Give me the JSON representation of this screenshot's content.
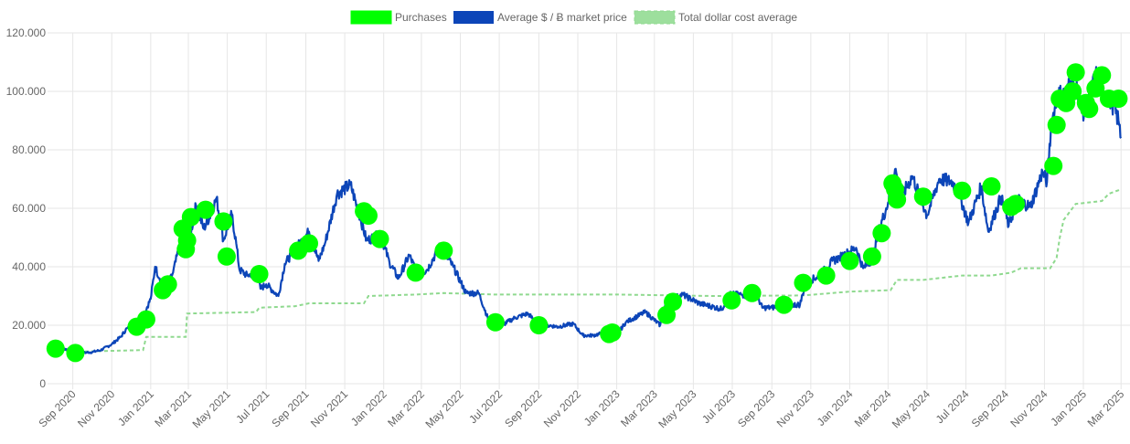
{
  "chart_data": {
    "type": "line",
    "title": "",
    "xlabel": "",
    "ylabel": "",
    "ylim": [
      0,
      120000
    ],
    "xlim": [
      "2020-08-01",
      "2025-03-15"
    ],
    "grid": true,
    "legend_position": "top-center",
    "y_ticks": [
      {
        "value": 0,
        "label": "0"
      },
      {
        "value": 20000,
        "label": "20.000"
      },
      {
        "value": 40000,
        "label": "40.000"
      },
      {
        "value": 60000,
        "label": "60.000"
      },
      {
        "value": 80000,
        "label": "80.000"
      },
      {
        "value": 100000,
        "label": "100.000"
      },
      {
        "value": 120000,
        "label": "120.000"
      }
    ],
    "x_ticks": [
      {
        "date": "2020-09-01",
        "label": "Sep 2020"
      },
      {
        "date": "2020-11-01",
        "label": "Nov 2020"
      },
      {
        "date": "2021-01-01",
        "label": "Jan 2021"
      },
      {
        "date": "2021-03-01",
        "label": "Mar 2021"
      },
      {
        "date": "2021-05-01",
        "label": "May 2021"
      },
      {
        "date": "2021-07-01",
        "label": "Jul 2021"
      },
      {
        "date": "2021-09-01",
        "label": "Sep 2021"
      },
      {
        "date": "2021-11-01",
        "label": "Nov 2021"
      },
      {
        "date": "2022-01-01",
        "label": "Jan 2022"
      },
      {
        "date": "2022-03-01",
        "label": "Mar 2022"
      },
      {
        "date": "2022-05-01",
        "label": "May 2022"
      },
      {
        "date": "2022-07-01",
        "label": "Jul 2022"
      },
      {
        "date": "2022-09-01",
        "label": "Sep 2022"
      },
      {
        "date": "2022-11-01",
        "label": "Nov 2022"
      },
      {
        "date": "2023-01-01",
        "label": "Jan 2023"
      },
      {
        "date": "2023-03-01",
        "label": "Mar 2023"
      },
      {
        "date": "2023-05-01",
        "label": "May 2023"
      },
      {
        "date": "2023-07-01",
        "label": "Jul 2023"
      },
      {
        "date": "2023-09-01",
        "label": "Sep 2023"
      },
      {
        "date": "2023-11-01",
        "label": "Nov 2023"
      },
      {
        "date": "2024-01-01",
        "label": "Jan 2024"
      },
      {
        "date": "2024-03-01",
        "label": "Mar 2024"
      },
      {
        "date": "2024-05-01",
        "label": "May 2024"
      },
      {
        "date": "2024-07-01",
        "label": "Jul 2024"
      },
      {
        "date": "2024-09-01",
        "label": "Sep 2024"
      },
      {
        "date": "2024-11-01",
        "label": "Nov 2024"
      },
      {
        "date": "2025-01-01",
        "label": "Jan 2025"
      },
      {
        "date": "2025-03-01",
        "label": "Mar 2025"
      }
    ],
    "series": [
      {
        "name": "Purchases",
        "style": "points",
        "color": "#00ff00",
        "points": [
          [
            "2020-08-05",
            12000
          ],
          [
            "2020-09-05",
            10500
          ],
          [
            "2020-12-10",
            19500
          ],
          [
            "2020-12-25",
            22000
          ],
          [
            "2021-01-20",
            32000
          ],
          [
            "2021-01-28",
            34000
          ],
          [
            "2021-02-20",
            53000
          ],
          [
            "2021-02-25",
            46000
          ],
          [
            "2021-02-27",
            49000
          ],
          [
            "2021-03-05",
            57000
          ],
          [
            "2021-03-28",
            59500
          ],
          [
            "2021-04-25",
            55500
          ],
          [
            "2021-04-30",
            43500
          ],
          [
            "2021-06-20",
            37500
          ],
          [
            "2021-08-20",
            45500
          ],
          [
            "2021-09-06",
            48000
          ],
          [
            "2021-12-01",
            59000
          ],
          [
            "2021-12-08",
            57500
          ],
          [
            "2021-12-26",
            49500
          ],
          [
            "2022-02-20",
            38000
          ],
          [
            "2022-04-05",
            45500
          ],
          [
            "2022-06-25",
            21000
          ],
          [
            "2022-09-01",
            20000
          ],
          [
            "2022-12-20",
            17000
          ],
          [
            "2022-12-25",
            17500
          ],
          [
            "2023-03-20",
            23500
          ],
          [
            "2023-03-30",
            28000
          ],
          [
            "2023-06-30",
            28500
          ],
          [
            "2023-08-01",
            31000
          ],
          [
            "2023-09-20",
            27000
          ],
          [
            "2023-10-20",
            34500
          ],
          [
            "2023-11-25",
            37000
          ],
          [
            "2024-01-01",
            42000
          ],
          [
            "2024-02-05",
            43500
          ],
          [
            "2024-02-20",
            51500
          ],
          [
            "2024-03-08",
            68500
          ],
          [
            "2024-03-12",
            66500
          ],
          [
            "2024-03-15",
            63000
          ],
          [
            "2024-04-25",
            64000
          ],
          [
            "2024-06-25",
            66000
          ],
          [
            "2024-08-10",
            67500
          ],
          [
            "2024-09-10",
            60500
          ],
          [
            "2024-09-17",
            61500
          ],
          [
            "2024-11-15",
            74500
          ],
          [
            "2024-11-20",
            88500
          ],
          [
            "2024-11-25",
            97500
          ],
          [
            "2024-12-05",
            96000
          ],
          [
            "2024-12-15",
            100000
          ],
          [
            "2024-12-20",
            106500
          ],
          [
            "2025-01-05",
            96000
          ],
          [
            "2025-01-10",
            94000
          ],
          [
            "2025-01-20",
            101000
          ],
          [
            "2025-01-30",
            105500
          ],
          [
            "2025-02-10",
            97500
          ],
          [
            "2025-02-25",
            97500
          ]
        ]
      },
      {
        "name": "Average $ / Ƀ market price",
        "style": "line",
        "color": "#0c45b8",
        "points": [
          [
            "2020-08-01",
            11500
          ],
          [
            "2020-08-15",
            12000
          ],
          [
            "2020-09-01",
            11500
          ],
          [
            "2020-09-15",
            10600
          ],
          [
            "2020-10-01",
            10800
          ],
          [
            "2020-10-15",
            11500
          ],
          [
            "2020-11-01",
            13500
          ],
          [
            "2020-11-15",
            16000
          ],
          [
            "2020-11-25",
            19000
          ],
          [
            "2020-12-05",
            19000
          ],
          [
            "2020-12-20",
            23000
          ],
          [
            "2021-01-01",
            29000
          ],
          [
            "2021-01-08",
            40000
          ],
          [
            "2021-01-15",
            36000
          ],
          [
            "2021-01-25",
            32000
          ],
          [
            "2021-02-05",
            38000
          ],
          [
            "2021-02-15",
            47000
          ],
          [
            "2021-02-21",
            56000
          ],
          [
            "2021-03-01",
            47000
          ],
          [
            "2021-03-13",
            61000
          ],
          [
            "2021-03-25",
            53000
          ],
          [
            "2021-04-05",
            58000
          ],
          [
            "2021-04-14",
            63500
          ],
          [
            "2021-04-25",
            49000
          ],
          [
            "2021-05-08",
            58000
          ],
          [
            "2021-05-15",
            48000
          ],
          [
            "2021-05-20",
            39000
          ],
          [
            "2021-06-01",
            37000
          ],
          [
            "2021-06-15",
            38000
          ],
          [
            "2021-06-22",
            32500
          ],
          [
            "2021-07-01",
            34000
          ],
          [
            "2021-07-20",
            30000
          ],
          [
            "2021-07-30",
            41000
          ],
          [
            "2021-08-15",
            46000
          ],
          [
            "2021-09-06",
            52000
          ],
          [
            "2021-09-21",
            42000
          ],
          [
            "2021-10-01",
            48000
          ],
          [
            "2021-10-20",
            65000
          ],
          [
            "2021-11-10",
            68000
          ],
          [
            "2021-11-25",
            57000
          ],
          [
            "2021-12-05",
            49000
          ],
          [
            "2021-12-27",
            51000
          ],
          [
            "2022-01-10",
            41500
          ],
          [
            "2022-01-24",
            36000
          ],
          [
            "2022-02-10",
            44000
          ],
          [
            "2022-02-24",
            37000
          ],
          [
            "2022-03-10",
            39000
          ],
          [
            "2022-03-30",
            47000
          ],
          [
            "2022-04-20",
            40000
          ],
          [
            "2022-05-10",
            31000
          ],
          [
            "2022-05-30",
            31000
          ],
          [
            "2022-06-13",
            22500
          ],
          [
            "2022-06-20",
            20000
          ],
          [
            "2022-07-01",
            19500
          ],
          [
            "2022-07-25",
            22500
          ],
          [
            "2022-08-15",
            24000
          ],
          [
            "2022-09-01",
            20000
          ],
          [
            "2022-09-15",
            20000
          ],
          [
            "2022-10-01",
            19500
          ],
          [
            "2022-10-25",
            20500
          ],
          [
            "2022-11-09",
            16500
          ],
          [
            "2022-11-25",
            16500
          ],
          [
            "2022-12-15",
            17500
          ],
          [
            "2023-01-01",
            16600
          ],
          [
            "2023-01-15",
            21000
          ],
          [
            "2023-02-15",
            24500
          ],
          [
            "2023-03-10",
            20000
          ],
          [
            "2023-03-20",
            28000
          ],
          [
            "2023-04-14",
            30500
          ],
          [
            "2023-05-10",
            27500
          ],
          [
            "2023-06-15",
            25500
          ],
          [
            "2023-06-25",
            30500
          ],
          [
            "2023-07-15",
            30500
          ],
          [
            "2023-08-10",
            29500
          ],
          [
            "2023-08-17",
            26000
          ],
          [
            "2023-09-01",
            26000
          ],
          [
            "2023-09-20",
            27000
          ],
          [
            "2023-10-15",
            27000
          ],
          [
            "2023-10-24",
            34500
          ],
          [
            "2023-11-15",
            37000
          ],
          [
            "2023-12-05",
            42000
          ],
          [
            "2023-12-15",
            43000
          ],
          [
            "2024-01-11",
            46500
          ],
          [
            "2024-01-22",
            39500
          ],
          [
            "2024-02-05",
            42500
          ],
          [
            "2024-02-15",
            52000
          ],
          [
            "2024-03-01",
            62000
          ],
          [
            "2024-03-13",
            73500
          ],
          [
            "2024-03-20",
            63000
          ],
          [
            "2024-04-08",
            71000
          ],
          [
            "2024-04-20",
            64000
          ],
          [
            "2024-05-01",
            57500
          ],
          [
            "2024-05-20",
            70000
          ],
          [
            "2024-06-10",
            69000
          ],
          [
            "2024-06-20",
            65000
          ],
          [
            "2024-07-05",
            55000
          ],
          [
            "2024-07-25",
            67500
          ],
          [
            "2024-08-05",
            52000
          ],
          [
            "2024-08-25",
            64000
          ],
          [
            "2024-09-06",
            54000
          ],
          [
            "2024-09-20",
            63000
          ],
          [
            "2024-10-10",
            60500
          ],
          [
            "2024-10-29",
            72500
          ],
          [
            "2024-11-05",
            69000
          ],
          [
            "2024-11-12",
            89000
          ],
          [
            "2024-11-22",
            99000
          ],
          [
            "2024-12-05",
            99000
          ],
          [
            "2024-12-17",
            107000
          ],
          [
            "2024-12-30",
            92500
          ],
          [
            "2025-01-08",
            95000
          ],
          [
            "2025-01-20",
            106000
          ],
          [
            "2025-02-01",
            100000
          ],
          [
            "2025-02-15",
            96000
          ],
          [
            "2025-02-25",
            90000
          ],
          [
            "2025-03-01",
            84000
          ]
        ]
      },
      {
        "name": "Total dollar cost average",
        "style": "dashed-line",
        "color": "#8fd98f",
        "points": [
          [
            "2020-08-01",
            11500
          ],
          [
            "2020-09-15",
            11000
          ],
          [
            "2020-12-20",
            11500
          ],
          [
            "2020-12-25",
            16000
          ],
          [
            "2021-02-25",
            16000
          ],
          [
            "2021-02-27",
            24000
          ],
          [
            "2021-06-15",
            24500
          ],
          [
            "2021-06-20",
            26000
          ],
          [
            "2021-08-15",
            26500
          ],
          [
            "2021-09-06",
            27500
          ],
          [
            "2021-12-01",
            27500
          ],
          [
            "2021-12-08",
            30000
          ],
          [
            "2022-02-20",
            30500
          ],
          [
            "2022-04-05",
            31000
          ],
          [
            "2022-06-25",
            30500
          ],
          [
            "2023-01-01",
            30500
          ],
          [
            "2023-06-01",
            30000
          ],
          [
            "2023-10-20",
            30200
          ],
          [
            "2024-01-01",
            31500
          ],
          [
            "2024-03-05",
            32000
          ],
          [
            "2024-03-15",
            35500
          ],
          [
            "2024-04-25",
            35500
          ],
          [
            "2024-06-25",
            37000
          ],
          [
            "2024-08-10",
            37000
          ],
          [
            "2024-09-10",
            38000
          ],
          [
            "2024-09-25",
            39500
          ],
          [
            "2024-11-10",
            39500
          ],
          [
            "2024-11-20",
            43000
          ],
          [
            "2024-11-25",
            50000
          ],
          [
            "2024-12-01",
            56000
          ],
          [
            "2024-12-20",
            61500
          ],
          [
            "2025-01-30",
            62500
          ],
          [
            "2025-02-10",
            65000
          ],
          [
            "2025-03-01",
            66500
          ]
        ]
      }
    ]
  }
}
